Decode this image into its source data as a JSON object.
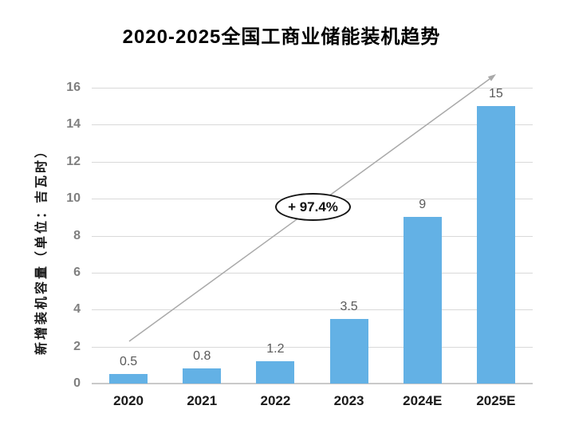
{
  "page": {
    "title": "2020-2025全国工商业储能装机趋势"
  },
  "chart_data": {
    "type": "bar",
    "title": "2020-2025全国工商业储能装机趋势",
    "categories": [
      "2020",
      "2021",
      "2022",
      "2023",
      "2024E",
      "2025E"
    ],
    "values": [
      0.5,
      0.8,
      1.2,
      3.5,
      9,
      15
    ],
    "data_labels": [
      "0.5",
      "0.8",
      "1.2",
      "3.5",
      "9",
      "15"
    ],
    "xlabel": "",
    "ylabel": "新增装机容量（单位：吉瓦时）",
    "ylim": [
      0,
      16
    ],
    "yticks": [
      0,
      2,
      4,
      6,
      8,
      10,
      12,
      14,
      16
    ],
    "grid": true,
    "legend": false,
    "annotations": [
      {
        "type": "growth-ellipse",
        "text": "+ 97.4%"
      },
      {
        "type": "trend-arrow",
        "direction": "up-right"
      }
    ],
    "colors": {
      "bar": "#63B1E5",
      "gridline": "#D9D9D9",
      "axis_line": "#C9C9C9",
      "tick_label": "#7F7F7F",
      "data_label": "#595959",
      "x_label": "#1A1A1A",
      "title": "#000000",
      "arrow": "#A9A9A9",
      "annotation_border": "#141414",
      "background": "#FFFFFF"
    }
  }
}
